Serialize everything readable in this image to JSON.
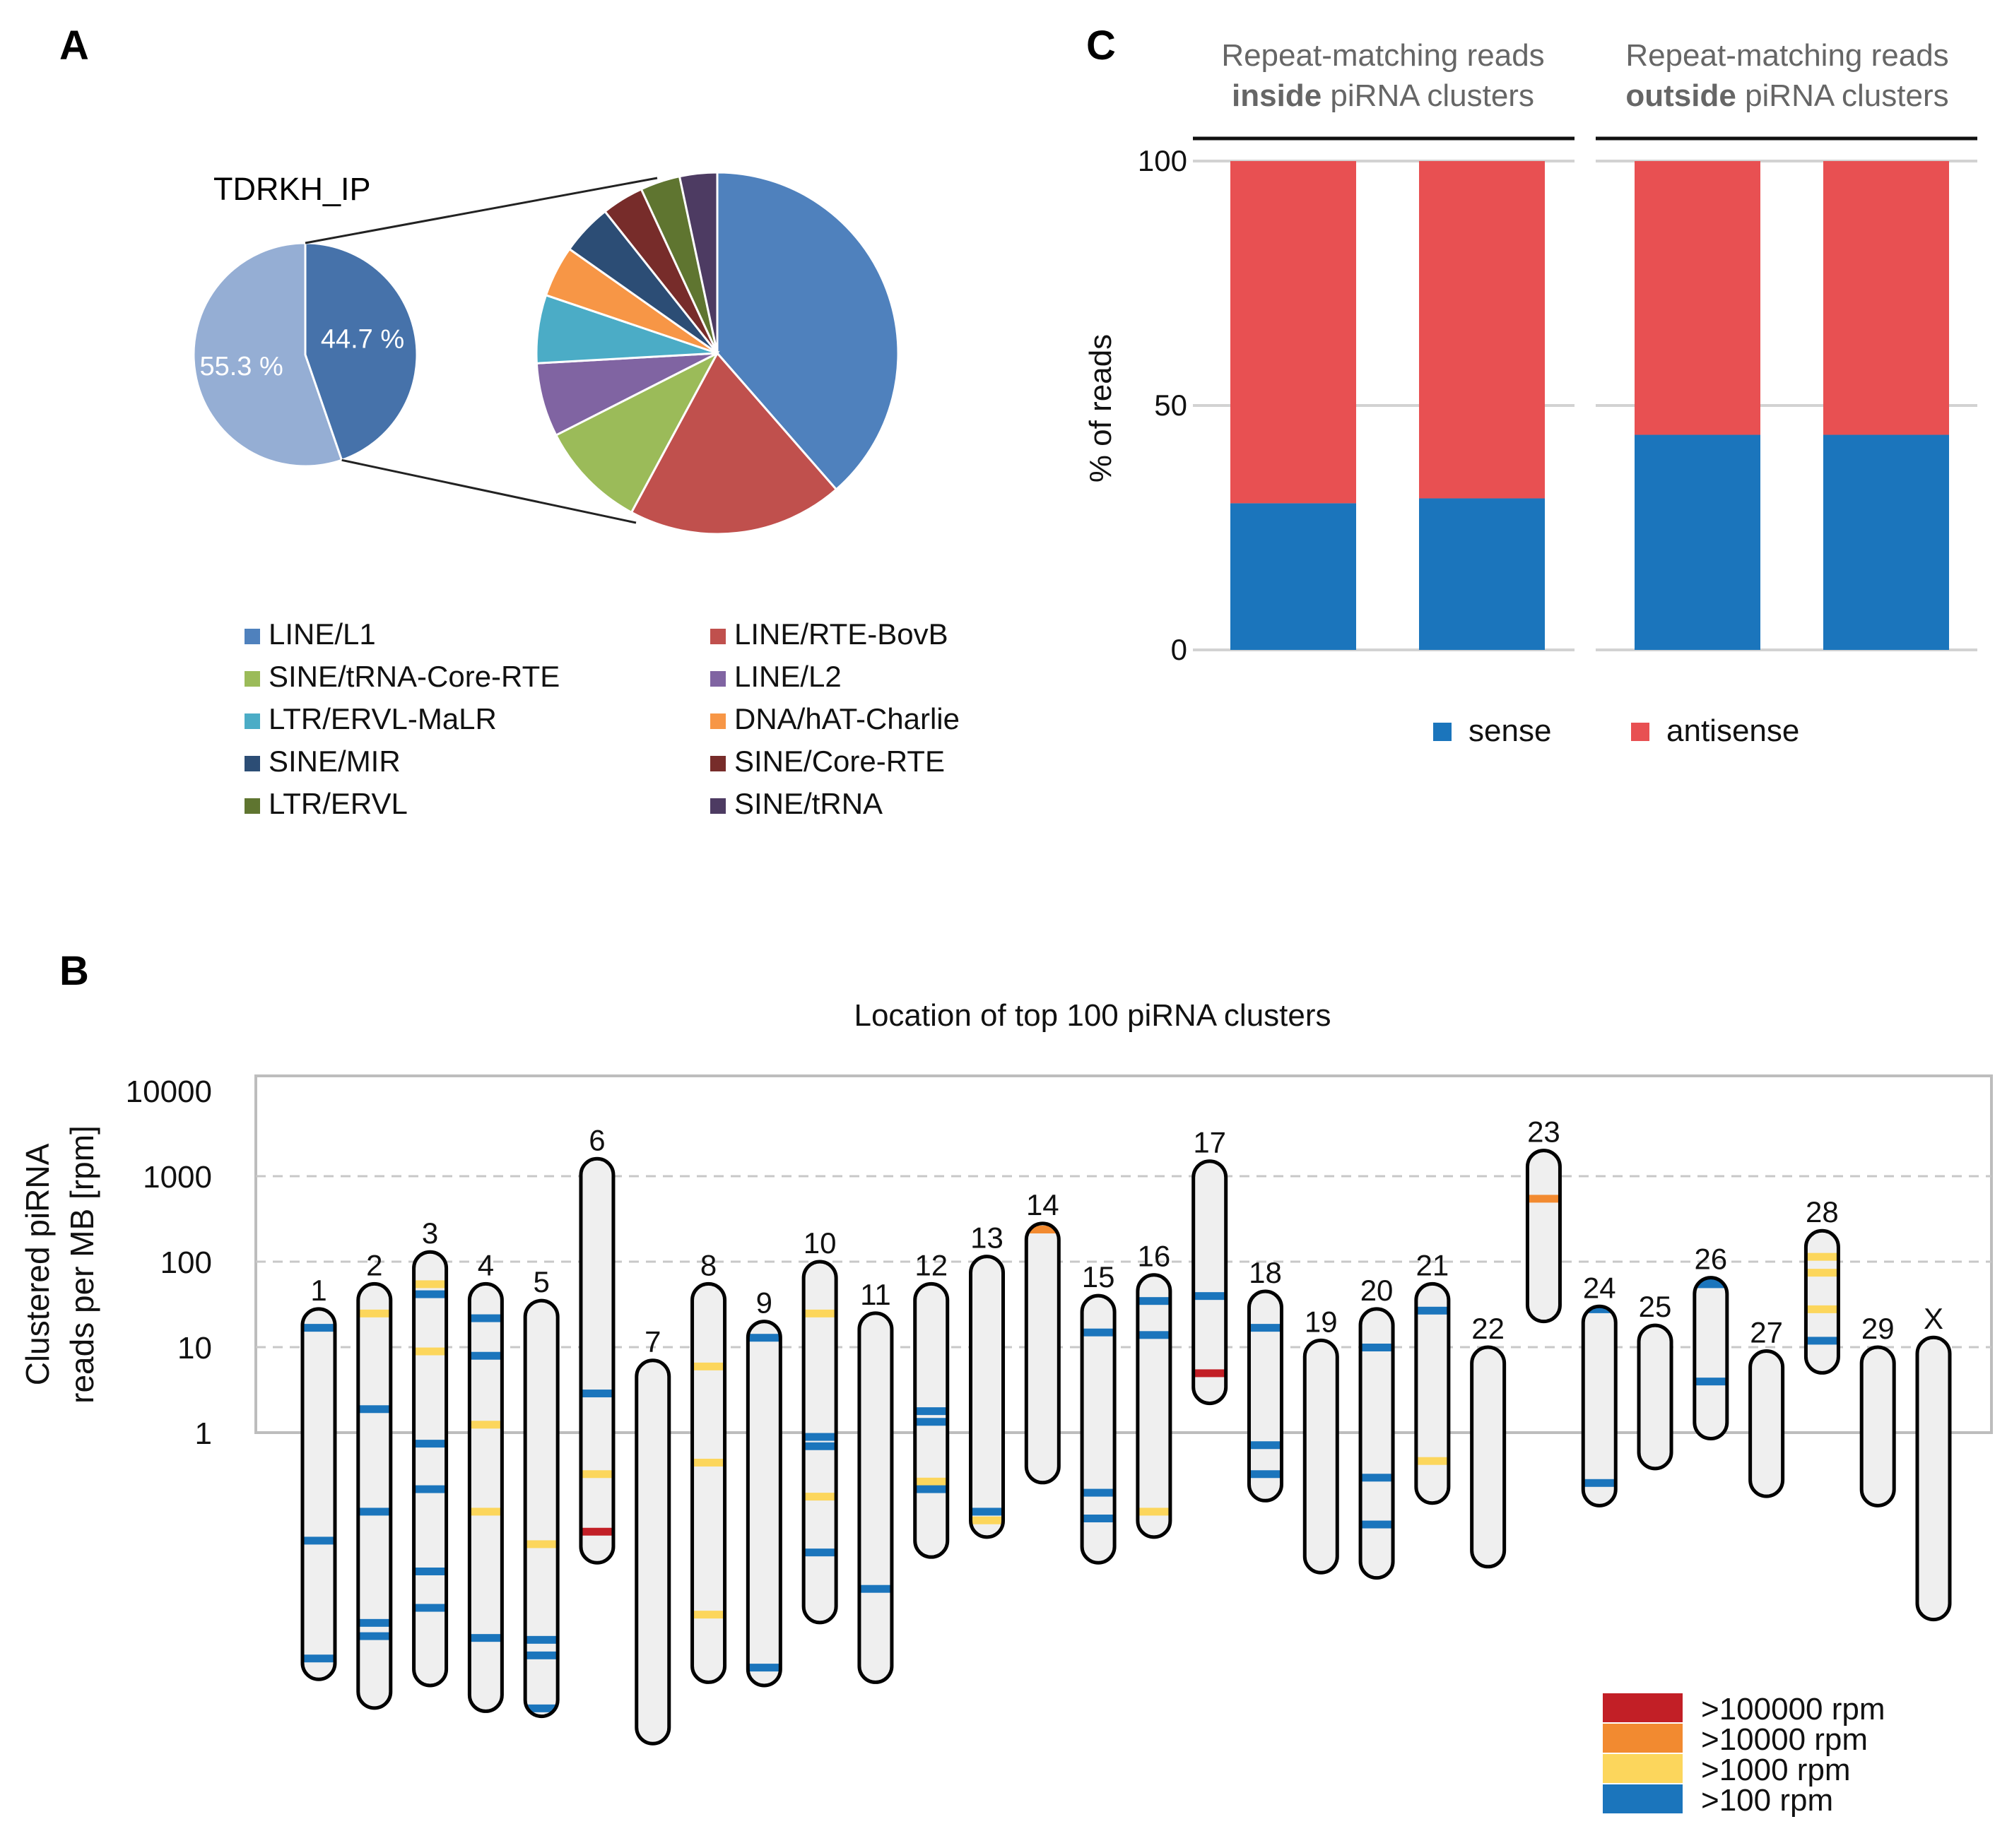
{
  "chart_data": [
    {
      "id": "A",
      "type": "pie",
      "panel_label": "A",
      "sample_label": "TDRKH_IP",
      "main_pie": {
        "slices": [
          {
            "label": "55.3 %",
            "value": 55.3,
            "color": "#95aed4"
          },
          {
            "label": "44.7 %",
            "value": 44.7,
            "color": "#4672aa"
          }
        ]
      },
      "breakdown_pie": {
        "slices": [
          {
            "name": "LINE/L1",
            "value": 38,
            "color": "#4f81bd"
          },
          {
            "name": "LINE/RTE-BovB",
            "value": 19,
            "color": "#c0504d"
          },
          {
            "name": "SINE/tRNA-Core-RTE",
            "value": 9.5,
            "color": "#9bbb59"
          },
          {
            "name": "LINE/L2",
            "value": 6.5,
            "color": "#8064a2"
          },
          {
            "name": "LTR/ERVL-MaLR",
            "value": 6,
            "color": "#4bacc6"
          },
          {
            "name": "DNA/hAT-Charlie",
            "value": 4.5,
            "color": "#f79646"
          },
          {
            "name": "SINE/MIR",
            "value": 4.5,
            "color": "#2c4d75"
          },
          {
            "name": "SINE/Core-RTE",
            "value": 3.7,
            "color": "#772c2a"
          },
          {
            "name": "LTR/ERVL",
            "value": 3.5,
            "color": "#5f7530"
          },
          {
            "name": "SINE/tRNA",
            "value": 3.3,
            "color": "#4d3b62"
          }
        ]
      }
    },
    {
      "id": "C",
      "type": "bar",
      "stacked": true,
      "panel_label": "C",
      "groups": [
        {
          "title_line1": "Repeat-matching reads",
          "title_bold": "inside",
          "title_rest": "piRNA clusters"
        },
        {
          "title_line1": "Repeat-matching reads",
          "title_bold": "outside",
          "title_rest": "piRNA clusters"
        }
      ],
      "ylabel": "% of reads",
      "ylim": [
        0,
        100
      ],
      "yticks": [
        "0",
        "50",
        "100"
      ],
      "series": [
        {
          "name": "sense",
          "color": "#1b75bc",
          "values": [
            30,
            31,
            44,
            44
          ]
        },
        {
          "name": "antisense",
          "color": "#e85052",
          "values": [
            70,
            69,
            56,
            56
          ]
        }
      ]
    },
    {
      "id": "B",
      "type": "scatter",
      "panel_label": "B",
      "title": "Location of top 100 piRNA clusters",
      "ylabel_line1": "Clustered piRNA",
      "ylabel_line2": "reads per MB [rpm]",
      "ytick_labels": [
        "10000",
        "1000",
        "100",
        "10",
        "1"
      ],
      "ytick_values": [
        10000,
        1000,
        100,
        10,
        1
      ],
      "legend": [
        {
          "label": ">100000 rpm",
          "color": "#c21f26"
        },
        {
          "label": ">10000 rpm",
          "color": "#f28a30"
        },
        {
          "label": ">1000 rpm",
          "color": "#fcd65c"
        },
        {
          "label": ">100 rpm",
          "color": "#1b75bc"
        }
      ],
      "chromosomes": [
        {
          "name": "1",
          "top": 28,
          "bottom": 0.0013,
          "bands": [
            {
              "v": 17,
              "c": "b"
            },
            {
              "v": 0.055,
              "c": "b"
            },
            {
              "v": 0.0023,
              "c": "b"
            },
            {
              "v": 0.00075,
              "c": "b"
            }
          ]
        },
        {
          "name": "2",
          "top": 55,
          "bottom": 0.0006,
          "bands": [
            {
              "v": 25,
              "c": "y"
            },
            {
              "v": 1.9,
              "c": "b"
            },
            {
              "v": 0.12,
              "c": "b"
            },
            {
              "v": 0.006,
              "c": "b"
            },
            {
              "v": 0.0042,
              "c": "b"
            }
          ]
        },
        {
          "name": "3",
          "top": 130,
          "bottom": 0.0011,
          "bands": [
            {
              "v": 55,
              "c": "y"
            },
            {
              "v": 42,
              "c": "b"
            },
            {
              "v": 9,
              "c": "y"
            },
            {
              "v": 0.75,
              "c": "b"
            },
            {
              "v": 0.22,
              "c": "b"
            },
            {
              "v": 0.024,
              "c": "b"
            },
            {
              "v": 0.009,
              "c": "b"
            }
          ]
        },
        {
          "name": "4",
          "top": 55,
          "bottom": 0.00055,
          "bands": [
            {
              "v": 22,
              "c": "b"
            },
            {
              "v": 8,
              "c": "b"
            },
            {
              "v": 1.25,
              "c": "y"
            },
            {
              "v": 0.12,
              "c": "y"
            },
            {
              "v": 0.004,
              "c": "b"
            }
          ]
        },
        {
          "name": "5",
          "top": 35,
          "bottom": 0.00048,
          "bands": [
            {
              "v": 0.05,
              "c": "y"
            },
            {
              "v": 0.0038,
              "c": "b"
            },
            {
              "v": 0.0025,
              "c": "b"
            },
            {
              "v": 0.0006,
              "c": "b"
            }
          ]
        },
        {
          "name": "6",
          "top": 1600,
          "bottom": 0.03,
          "bands": [
            {
              "v": 2.9,
              "c": "b"
            },
            {
              "v": 0.33,
              "c": "y"
            },
            {
              "v": 0.07,
              "c": "r"
            }
          ]
        },
        {
          "name": "7",
          "top": 7,
          "bottom": 0.00023,
          "bands": []
        },
        {
          "name": "8",
          "top": 55,
          "bottom": 0.0012,
          "bands": [
            {
              "v": 6,
              "c": "y"
            },
            {
              "v": 0.45,
              "c": "y"
            },
            {
              "v": 0.0075,
              "c": "y"
            }
          ]
        },
        {
          "name": "9",
          "top": 20,
          "bottom": 0.0011,
          "bands": [
            {
              "v": 13,
              "c": "b"
            },
            {
              "v": 0.0018,
              "c": "b"
            }
          ]
        },
        {
          "name": "10",
          "top": 100,
          "bottom": 0.006,
          "bands": [
            {
              "v": 25,
              "c": "y"
            },
            {
              "v": 0.9,
              "c": "b"
            },
            {
              "v": 0.7,
              "c": "b"
            },
            {
              "v": 0.18,
              "c": "y"
            },
            {
              "v": 0.04,
              "c": "b"
            }
          ]
        },
        {
          "name": "11",
          "top": 25,
          "bottom": 0.0012,
          "bands": [
            {
              "v": 0.015,
              "c": "b"
            }
          ]
        },
        {
          "name": "12",
          "top": 55,
          "bottom": 0.035,
          "bands": [
            {
              "v": 1.8,
              "c": "b"
            },
            {
              "v": 1.35,
              "c": "b"
            },
            {
              "v": 0.27,
              "c": "y"
            },
            {
              "v": 0.22,
              "c": "b"
            }
          ]
        },
        {
          "name": "13",
          "top": 115,
          "bottom": 0.06,
          "bands": [
            {
              "v": 0.12,
              "c": "b"
            },
            {
              "v": 0.095,
              "c": "y"
            }
          ]
        },
        {
          "name": "14",
          "top": 280,
          "bottom": 0.26,
          "bands": [
            {
              "v": 240,
              "c": "o"
            }
          ]
        },
        {
          "name": "15",
          "top": 40,
          "bottom": 0.03,
          "bands": [
            {
              "v": 15,
              "c": "b"
            },
            {
              "v": 0.2,
              "c": "b"
            },
            {
              "v": 0.1,
              "c": "b"
            }
          ]
        },
        {
          "name": "16",
          "top": 70,
          "bottom": 0.06,
          "bands": [
            {
              "v": 35,
              "c": "b"
            },
            {
              "v": 14,
              "c": "b"
            },
            {
              "v": 0.12,
              "c": "y"
            }
          ]
        },
        {
          "name": "17",
          "top": 1500,
          "bottom": 2.2,
          "bands": [
            {
              "v": 40,
              "c": "b"
            },
            {
              "v": 5,
              "c": "r"
            }
          ]
        },
        {
          "name": "18",
          "top": 45,
          "bottom": 0.16,
          "bands": [
            {
              "v": 17,
              "c": "b"
            },
            {
              "v": 0.72,
              "c": "b"
            },
            {
              "v": 0.33,
              "c": "b"
            }
          ]
        },
        {
          "name": "19",
          "top": 12,
          "bottom": 0.023,
          "bands": []
        },
        {
          "name": "20",
          "top": 28,
          "bottom": 0.02,
          "bands": [
            {
              "v": 10,
              "c": "b"
            },
            {
              "v": 0.3,
              "c": "b"
            },
            {
              "v": 0.085,
              "c": "b"
            }
          ]
        },
        {
          "name": "21",
          "top": 55,
          "bottom": 0.15,
          "bands": [
            {
              "v": 27,
              "c": "b"
            },
            {
              "v": 0.47,
              "c": "y"
            }
          ]
        },
        {
          "name": "22",
          "top": 10,
          "bottom": 0.027,
          "bands": []
        },
        {
          "name": "23",
          "top": 2000,
          "bottom": 20,
          "bands": [
            {
              "v": 550,
              "c": "o"
            }
          ]
        },
        {
          "name": "24",
          "top": 30,
          "bottom": 0.14,
          "bands": [
            {
              "v": 28,
              "c": "b"
            },
            {
              "v": 0.26,
              "c": "b"
            }
          ]
        },
        {
          "name": "25",
          "top": 18,
          "bottom": 0.38,
          "bands": []
        },
        {
          "name": "26",
          "top": 65,
          "bottom": 0.85,
          "bands": [
            {
              "v": 60,
              "c": "b"
            },
            {
              "v": 55,
              "c": "b"
            },
            {
              "v": 4,
              "c": "b"
            }
          ]
        },
        {
          "name": "27",
          "top": 9,
          "bottom": 0.18,
          "bands": []
        },
        {
          "name": "28",
          "top": 230,
          "bottom": 5,
          "bands": [
            {
              "v": 115,
              "c": "y"
            },
            {
              "v": 75,
              "c": "y"
            },
            {
              "v": 28,
              "c": "y"
            },
            {
              "v": 12,
              "c": "b"
            }
          ]
        },
        {
          "name": "29",
          "top": 10,
          "bottom": 0.14,
          "bands": []
        },
        {
          "name": "X",
          "top": 13,
          "bottom": 0.0065,
          "bands": []
        }
      ]
    }
  ]
}
